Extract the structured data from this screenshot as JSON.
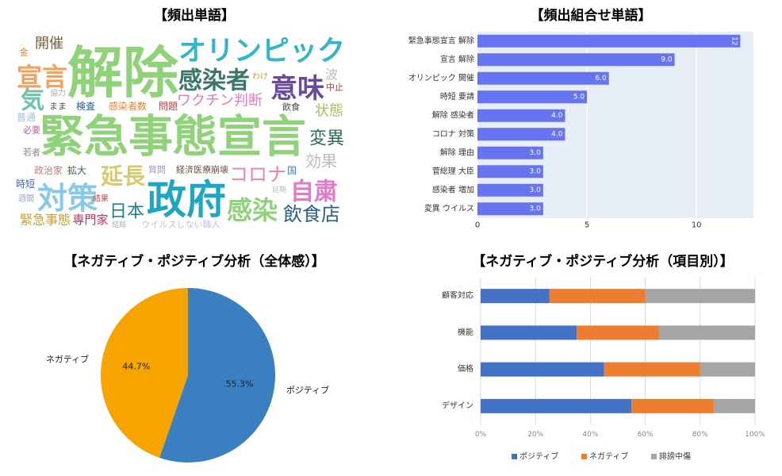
{
  "chart_data": [
    {
      "type": "wordcloud",
      "title": "【頻出単語】",
      "words": [
        {
          "text": "解除",
          "weight": 70,
          "color": "#8fd27a"
        },
        {
          "text": "緊急事態宣言",
          "weight": 56,
          "color": "#8fd27a"
        },
        {
          "text": "オリンピック",
          "weight": 35,
          "color": "#2fb7c9"
        },
        {
          "text": "政府",
          "weight": 50,
          "color": "#1ea6c2"
        },
        {
          "text": "対策",
          "weight": 38,
          "color": "#86c9ea"
        },
        {
          "text": "感染者",
          "weight": 30,
          "color": "#3b7768"
        },
        {
          "text": "意味",
          "weight": 34,
          "color": "#6a4a9c"
        },
        {
          "text": "感染",
          "weight": 32,
          "color": "#8fd27a"
        },
        {
          "text": "自粛",
          "weight": 30,
          "color": "#e07bc4"
        },
        {
          "text": "コロナ",
          "weight": 24,
          "color": "#f27fae"
        },
        {
          "text": "飲食店",
          "weight": 24,
          "color": "#2a5f8e"
        },
        {
          "text": "延長",
          "weight": 28,
          "color": "#d6c96e"
        },
        {
          "text": "日本",
          "weight": 22,
          "color": "#1f7e8d"
        },
        {
          "text": "変異",
          "weight": 22,
          "color": "#2b6e4f"
        },
        {
          "text": "効果",
          "weight": 20,
          "color": "#bbbbbb"
        },
        {
          "text": "状態",
          "weight": 18,
          "color": "#a6bf5e"
        },
        {
          "text": "宣言",
          "weight": 32,
          "color": "#f2a15e"
        },
        {
          "text": "開催",
          "weight": 18,
          "color": "#7d5e3e"
        },
        {
          "text": "気",
          "weight": 30,
          "color": "#6fc1b0"
        },
        {
          "text": "ワクチン判断",
          "weight": 18,
          "color": "#e07bc4"
        },
        {
          "text": "感染者数",
          "weight": 12,
          "color": "#f07f2e"
        },
        {
          "text": "問題",
          "weight": 12,
          "color": "#c04040"
        },
        {
          "text": "検査",
          "weight": 12,
          "color": "#2060a0"
        },
        {
          "text": "まま",
          "weight": 11,
          "color": "#555555"
        },
        {
          "text": "協力",
          "weight": 10,
          "color": "#aaaaaa"
        },
        {
          "text": "普通",
          "weight": 12,
          "color": "#9fbfe0"
        },
        {
          "text": "必要",
          "weight": 11,
          "color": "#c060a0"
        },
        {
          "text": "若者",
          "weight": 11,
          "color": "#888888"
        },
        {
          "text": "政治家",
          "weight": 12,
          "color": "#c08080"
        },
        {
          "text": "拡大",
          "weight": 12,
          "color": "#406040"
        },
        {
          "text": "時短",
          "weight": 12,
          "color": "#4060c0"
        },
        {
          "text": "週間",
          "weight": 10,
          "color": "#90a0d0"
        },
        {
          "text": "結果",
          "weight": 10,
          "color": "#c04040"
        },
        {
          "text": "緊急事態",
          "weight": 16,
          "color": "#c8a030"
        },
        {
          "text": "専門家",
          "weight": 15,
          "color": "#c03060"
        },
        {
          "text": "結局",
          "weight": 9,
          "color": "#aaaaaa"
        },
        {
          "text": "ウイルスしない職人",
          "weight": 11,
          "color": "#c0c0e0"
        },
        {
          "text": "質問",
          "weight": 11,
          "color": "#a090c0"
        },
        {
          "text": "経済医療崩壊",
          "weight": 11,
          "color": "#705040"
        },
        {
          "text": "国",
          "weight": 12,
          "color": "#4080c0"
        },
        {
          "text": "延期",
          "weight": 9,
          "color": "#bbbbbb"
        },
        {
          "text": "わけ",
          "weight": 10,
          "color": "#c0a040"
        },
        {
          "text": "波",
          "weight": 16,
          "color": "#bbbbbb"
        },
        {
          "text": "中止",
          "weight": 11,
          "color": "#c04040"
        },
        {
          "text": "飲食",
          "weight": 11,
          "color": "#404040"
        },
        {
          "text": "金",
          "weight": 11,
          "color": "#e08030"
        }
      ]
    },
    {
      "type": "hbar",
      "title": "【頻出組合せ単語】",
      "categories": [
        "緊急事態宣言 解除",
        "宣言 解除",
        "オリンピック 開催",
        "時短 要請",
        "解除 感染者",
        "コロナ 対策",
        "解除 理由",
        "菅総理 大臣",
        "感染者 増加",
        "変異 ウイルス"
      ],
      "values": [
        12,
        9,
        6,
        5,
        4,
        4,
        3,
        3,
        3,
        3
      ],
      "value_labels": [
        "12",
        "9.0",
        "6.0",
        "5.0",
        "4.0",
        "4.0",
        "3.0",
        "3.0",
        "3.0",
        "3.0"
      ],
      "color": "#6674f0",
      "xlim": [
        0,
        12.6
      ],
      "xticks": [
        0,
        5,
        10
      ],
      "grid": true
    },
    {
      "type": "pie",
      "title": "【ネガティブ・ポジティブ分析（全体感）】",
      "categories": [
        "ポジティブ",
        "ネガティブ"
      ],
      "values": [
        55.3,
        44.7
      ],
      "value_labels": [
        "55.3%",
        "44.7%"
      ],
      "colors": [
        "#3a7fc0",
        "#f7a400"
      ]
    },
    {
      "type": "stackedhbar",
      "title": "【ネガティブ・ポジティブ分析（項目別）】",
      "categories": [
        "顧客対応",
        "機能",
        "価格",
        "デザイン"
      ],
      "series": [
        {
          "name": "ポジティブ",
          "color": "#4472c4",
          "values": [
            25,
            35,
            45,
            55
          ]
        },
        {
          "name": "ネガティブ",
          "color": "#ed7d31",
          "values": [
            35,
            30,
            35,
            30
          ]
        },
        {
          "name": "誹謗中傷",
          "color": "#a5a5a5",
          "values": [
            40,
            35,
            20,
            15
          ]
        }
      ],
      "xlim": [
        0,
        100
      ],
      "xticks": [
        {
          "value": 0,
          "label": "0%"
        },
        {
          "value": 20,
          "label": "20%"
        },
        {
          "value": 40,
          "label": "40%"
        },
        {
          "value": 60,
          "label": "60%"
        },
        {
          "value": 80,
          "label": "80%"
        },
        {
          "value": 100,
          "label": "100%"
        }
      ],
      "grid": true,
      "legend": "bottom"
    }
  ]
}
